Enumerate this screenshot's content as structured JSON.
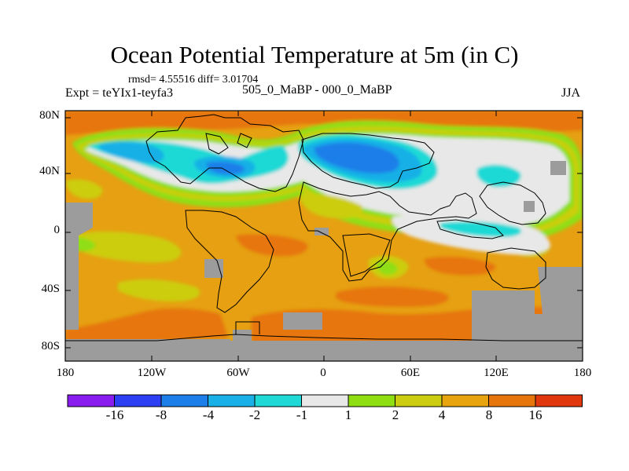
{
  "title": "Ocean Potential Temperature at 5m (in C)",
  "stats_text": "rmsd= 4.55516 diff= 3.01704",
  "expt_label": "Expt = teYIx1-teyfa3",
  "subtitle": "505_0_MaBP - 000_0_MaBP",
  "season": "JJA",
  "map": {
    "lon_range": [
      -180,
      180
    ],
    "lat_range": [
      -90,
      90
    ],
    "lat_ticks": [
      {
        "value": 80,
        "label": "80N"
      },
      {
        "value": 40,
        "label": "40N"
      },
      {
        "value": 0,
        "label": "0"
      },
      {
        "value": -40,
        "label": "40S"
      },
      {
        "value": -80,
        "label": "80S"
      }
    ],
    "lon_ticks": [
      {
        "value": -180,
        "label": "180"
      },
      {
        "value": -120,
        "label": "120W"
      },
      {
        "value": -60,
        "label": "60W"
      },
      {
        "value": 0,
        "label": "0"
      },
      {
        "value": 60,
        "label": "60E"
      },
      {
        "value": 120,
        "label": "120E"
      },
      {
        "value": 180,
        "label": "180"
      }
    ]
  },
  "colorbar": {
    "colors": [
      "#8a1cf0",
      "#2d3ff2",
      "#1b7ee9",
      "#18b0e6",
      "#1fd9d6",
      "#e8e8e8",
      "#8fde12",
      "#cccd10",
      "#e8a40f",
      "#e6760c",
      "#e0380c"
    ],
    "labels": [
      "-16",
      "-8",
      "-4",
      "-2",
      "-1",
      "1",
      "2",
      "4",
      "8",
      "16"
    ]
  },
  "colors": {
    "land": "#9c9c9c",
    "coast": "#000000"
  }
}
